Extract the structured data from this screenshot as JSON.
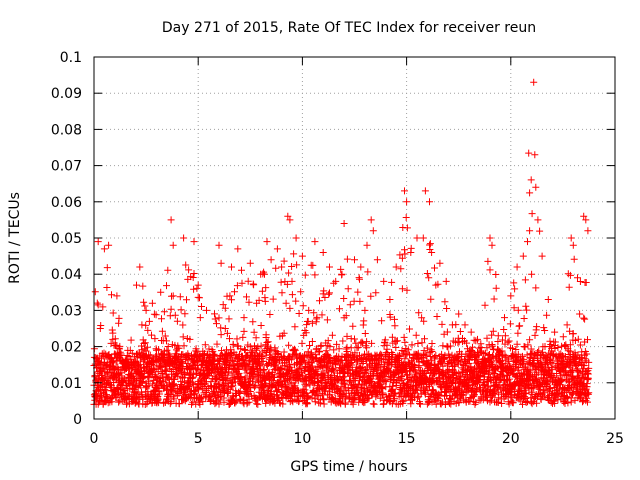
{
  "chart_data": {
    "type": "scatter",
    "title": "Day 271 of 2015, Rate Of TEC Index for receiver reun",
    "xlabel": "GPS time / hours",
    "ylabel": "ROTI / TECUs",
    "xlim": [
      0,
      25
    ],
    "ylim": [
      0,
      0.1
    ],
    "xticks": [
      0,
      5,
      10,
      15,
      20,
      25
    ],
    "xtick_labels": [
      "0",
      "5",
      "10",
      "15",
      "20",
      "25"
    ],
    "yticks": [
      0,
      0.01,
      0.02,
      0.03,
      0.04,
      0.05,
      0.06,
      0.07,
      0.08,
      0.09,
      0.1
    ],
    "ytick_labels": [
      "0",
      "0.01",
      "0.02",
      "0.03",
      "0.04",
      "0.05",
      "0.06",
      "0.07",
      "0.08",
      "0.09",
      "0.1"
    ],
    "grid": true,
    "marker": "+",
    "color": "#ff0000",
    "series": [
      {
        "name": "ROTI",
        "x": [
          0.05,
          0.2,
          0.3,
          0.4,
          0.5,
          0.7,
          0.9,
          1.1,
          1.3,
          1.5,
          1.7,
          2.0,
          2.2,
          2.3,
          2.5,
          2.8,
          3.0,
          3.2,
          3.5,
          3.7,
          3.8,
          4.0,
          4.3,
          4.5,
          4.6,
          4.8,
          5.0,
          5.1,
          5.4,
          5.7,
          6.0,
          6.1,
          6.3,
          6.6,
          6.9,
          7.2,
          7.5,
          7.8,
          8.0,
          8.3,
          8.5,
          8.8,
          9.0,
          9.3,
          9.4,
          9.5,
          9.7,
          10.0,
          10.3,
          10.6,
          11.0,
          11.3,
          11.6,
          11.9,
          12.0,
          12.2,
          12.5,
          12.8,
          13.0,
          13.3,
          13.4,
          13.6,
          13.9,
          14.2,
          14.5,
          14.8,
          14.9,
          15.0,
          15.2,
          15.5,
          15.8,
          15.9,
          16.1,
          16.2,
          16.4,
          16.6,
          16.9,
          17.2,
          17.5,
          17.8,
          18.1,
          18.4,
          18.7,
          19.0,
          19.1,
          19.4,
          19.7,
          20.0,
          20.3,
          20.6,
          20.8,
          20.9,
          21.0,
          21.1,
          21.15,
          21.2,
          21.3,
          21.5,
          21.8,
          22.1,
          22.4,
          22.7,
          22.9,
          23.0,
          23.2,
          23.3,
          23.5,
          23.6,
          23.7
        ],
        "y": [
          0.012,
          0.049,
          0.025,
          0.018,
          0.047,
          0.048,
          0.022,
          0.034,
          0.016,
          0.015,
          0.014,
          0.016,
          0.042,
          0.026,
          0.03,
          0.032,
          0.019,
          0.035,
          0.015,
          0.055,
          0.034,
          0.027,
          0.05,
          0.018,
          0.022,
          0.049,
          0.037,
          0.028,
          0.03,
          0.016,
          0.048,
          0.043,
          0.025,
          0.042,
          0.047,
          0.028,
          0.043,
          0.032,
          0.04,
          0.049,
          0.044,
          0.047,
          0.042,
          0.056,
          0.055,
          0.038,
          0.05,
          0.045,
          0.03,
          0.049,
          0.046,
          0.042,
          0.038,
          0.04,
          0.054,
          0.036,
          0.044,
          0.042,
          0.03,
          0.055,
          0.052,
          0.044,
          0.038,
          0.033,
          0.042,
          0.036,
          0.063,
          0.06,
          0.046,
          0.05,
          0.05,
          0.063,
          0.06,
          0.046,
          0.037,
          0.043,
          0.038,
          0.026,
          0.029,
          0.026,
          0.024,
          0.022,
          0.018,
          0.05,
          0.048,
          0.023,
          0.028,
          0.034,
          0.042,
          0.045,
          0.049,
          0.052,
          0.04,
          0.093,
          0.073,
          0.064,
          0.055,
          0.045,
          0.033,
          0.024,
          0.018,
          0.026,
          0.05,
          0.048,
          0.039,
          0.029,
          0.056,
          0.055,
          0.052
        ]
      }
    ]
  }
}
